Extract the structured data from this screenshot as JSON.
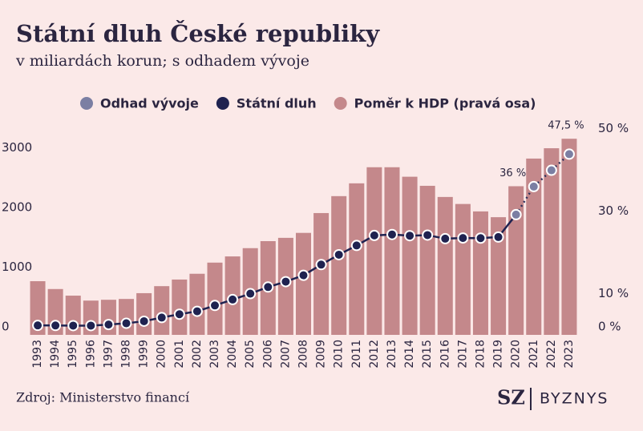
{
  "chart_data": {
    "type": "bar-line",
    "title": "Státní dluh České republiky",
    "subtitle": "v miliardách korun; s odhadem vývoje",
    "source": "Zdroj: Ministerstvo financí",
    "logo": "SZ",
    "logo_text": "BYZNYS",
    "categories": [
      "1993",
      "1994",
      "1995",
      "1996",
      "1997",
      "1998",
      "1999",
      "2000",
      "2001",
      "2002",
      "2003",
      "2004",
      "2005",
      "2006",
      "2007",
      "2008",
      "2009",
      "2010",
      "2011",
      "2012",
      "2013",
      "2014",
      "2015",
      "2016",
      "2017",
      "2018",
      "2019",
      "2020",
      "2021",
      "2022",
      "2023"
    ],
    "series": [
      {
        "name": "Odhad vývoje",
        "color": "#7b7fa3",
        "axis": "y",
        "style": "dotted",
        "values": [
          null,
          null,
          null,
          null,
          null,
          null,
          null,
          null,
          null,
          null,
          null,
          null,
          null,
          null,
          null,
          null,
          null,
          null,
          null,
          null,
          null,
          null,
          null,
          null,
          null,
          null,
          null,
          2016,
          2486,
          2760,
          3030
        ]
      },
      {
        "name": "Státní dluh",
        "color": "#1f2250",
        "axis": "y",
        "style": "solid",
        "values": [
          159,
          157,
          155,
          155,
          173,
          194,
          229,
          290,
          346,
          395,
          493,
          592,
          691,
          802,
          892,
          999,
          1178,
          1344,
          1499,
          1667,
          1683,
          1663,
          1673,
          1613,
          1624,
          1622,
          1640,
          null,
          null,
          null,
          null
        ]
      },
      {
        "name": "Poměr k HDP (pravá osa)",
        "color": "#c4888b",
        "axis": "y2",
        "style": "bar",
        "values": [
          13.0,
          11.1,
          9.5,
          8.3,
          8.5,
          8.7,
          10.1,
          11.8,
          13.4,
          14.8,
          17.5,
          19.0,
          21.0,
          22.7,
          23.5,
          24.7,
          29.5,
          33.6,
          36.7,
          40.6,
          40.6,
          38.3,
          36.1,
          33.4,
          31.7,
          29.9,
          28.5,
          36,
          42.7,
          45.2,
          47.5
        ],
        "value_labels": [
          null,
          null,
          null,
          null,
          null,
          null,
          null,
          null,
          null,
          null,
          null,
          null,
          null,
          null,
          null,
          null,
          null,
          null,
          null,
          null,
          null,
          null,
          null,
          null,
          null,
          null,
          null,
          "36 %",
          null,
          null,
          "47,5 %"
        ]
      }
    ],
    "ylim": [
      0,
      3600
    ],
    "yticks": [
      0,
      1000,
      2000,
      3000
    ],
    "y2lim": [
      0,
      52
    ],
    "y2ticks": [
      {
        "value": 0,
        "label": "0 %"
      },
      {
        "value": 10,
        "label": "10 %"
      },
      {
        "value": 30,
        "label": "30 %"
      },
      {
        "value": 50,
        "label": "50 %"
      }
    ],
    "grid": false,
    "legend": "top"
  }
}
